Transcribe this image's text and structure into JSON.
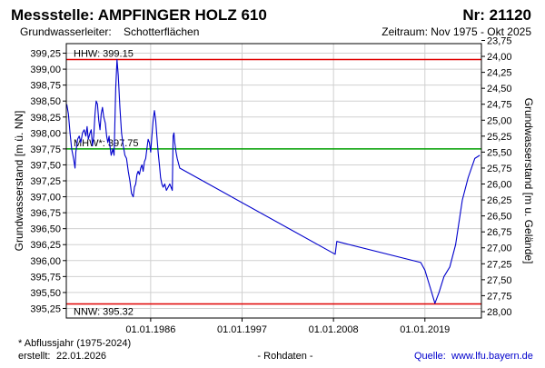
{
  "header": {
    "title": "Messstelle: AMPFINGER HOLZ 610",
    "number": "Nr: 21120",
    "aquifer_label": "Grundwasserleiter:",
    "aquifer_value": "Schotterflächen",
    "period": "Zeitraum: Nov 1975 - Okt 2025"
  },
  "footer": {
    "note": "* Abflussjahr (1975-2024)",
    "created_label": "erstellt:",
    "created_date": "22.01.2026",
    "raw_data": "- Rohdaten -",
    "source_label": "Quelle:",
    "source_url": "www.lfu.bayern.de"
  },
  "chart_data": {
    "type": "line",
    "ylabel_left": "Grundwasserstand [m ü. NN]",
    "ylabel_right": "Grundwasserstand [m u. Gelände]",
    "ylim_left": [
      395.1,
      399.4
    ],
    "ylim_right": [
      28.1,
      23.8
    ],
    "yticks_left": [
      "395,25",
      "395,50",
      "395,75",
      "396,00",
      "396,25",
      "396,50",
      "396,75",
      "397,00",
      "397,25",
      "397,50",
      "397,75",
      "398,00",
      "398,25",
      "398,50",
      "398,75",
      "399,00",
      "399,25"
    ],
    "yticks_right": [
      "23,75",
      "24,00",
      "24,25",
      "24,50",
      "24,75",
      "25,00",
      "25,25",
      "25,50",
      "25,75",
      "26,00",
      "26,25",
      "26,50",
      "26,75",
      "27,00",
      "27,25",
      "27,50",
      "27,75",
      "28,00"
    ],
    "xlim": [
      1975.85,
      2025.8
    ],
    "xticks": [
      {
        "label": "01.01.1986",
        "value": 1986.0
      },
      {
        "label": "01.01.1997",
        "value": 1997.0
      },
      {
        "label": "01.01.2008",
        "value": 2008.0
      },
      {
        "label": "01.01.2019",
        "value": 2019.0
      }
    ],
    "grid": true,
    "reference_lines": [
      {
        "name": "HHW",
        "label": "HHW: 399.15",
        "value": 399.15,
        "color": "#e00000"
      },
      {
        "name": "MHW",
        "label": "MHW*: 397.75",
        "value": 397.75,
        "color": "#00a000"
      },
      {
        "name": "NNW",
        "label": "NNW: 395.32",
        "value": 395.32,
        "color": "#e00000"
      }
    ],
    "series": [
      {
        "color": "#0000cc",
        "points": [
          [
            1975.9,
            398.45
          ],
          [
            1976.1,
            398.3
          ],
          [
            1976.3,
            398.0
          ],
          [
            1976.5,
            397.75
          ],
          [
            1976.75,
            397.58
          ],
          [
            1976.9,
            397.45
          ],
          [
            1977.0,
            397.7
          ],
          [
            1977.2,
            397.9
          ],
          [
            1977.4,
            397.95
          ],
          [
            1977.6,
            397.85
          ],
          [
            1977.8,
            398.0
          ],
          [
            1978.0,
            398.05
          ],
          [
            1978.2,
            397.95
          ],
          [
            1978.35,
            398.1
          ],
          [
            1978.5,
            397.9
          ],
          [
            1978.7,
            398.0
          ],
          [
            1978.85,
            398.05
          ],
          [
            1979.0,
            397.8
          ],
          [
            1979.15,
            397.95
          ],
          [
            1979.3,
            398.3
          ],
          [
            1979.45,
            398.5
          ],
          [
            1979.6,
            398.45
          ],
          [
            1979.75,
            398.2
          ],
          [
            1979.9,
            398.05
          ],
          [
            1980.05,
            398.3
          ],
          [
            1980.2,
            398.4
          ],
          [
            1980.35,
            398.25
          ],
          [
            1980.55,
            398.15
          ],
          [
            1980.7,
            397.95
          ],
          [
            1980.85,
            397.85
          ],
          [
            1981.0,
            397.95
          ],
          [
            1981.1,
            397.8
          ],
          [
            1981.25,
            397.65
          ],
          [
            1981.45,
            397.75
          ],
          [
            1981.6,
            397.65
          ],
          [
            1981.8,
            398.7
          ],
          [
            1981.95,
            399.15
          ],
          [
            1982.1,
            398.9
          ],
          [
            1982.3,
            398.4
          ],
          [
            1982.5,
            398.0
          ],
          [
            1982.7,
            397.8
          ],
          [
            1982.9,
            397.65
          ],
          [
            1983.1,
            397.6
          ],
          [
            1983.3,
            397.4
          ],
          [
            1983.5,
            397.25
          ],
          [
            1983.7,
            397.05
          ],
          [
            1983.9,
            397.0
          ],
          [
            1984.05,
            397.15
          ],
          [
            1984.2,
            397.2
          ],
          [
            1984.35,
            397.35
          ],
          [
            1984.5,
            397.4
          ],
          [
            1984.65,
            397.35
          ],
          [
            1984.8,
            397.45
          ],
          [
            1984.95,
            397.5
          ],
          [
            1985.1,
            397.4
          ],
          [
            1985.25,
            397.55
          ],
          [
            1985.4,
            397.6
          ],
          [
            1985.55,
            397.75
          ],
          [
            1985.7,
            397.9
          ],
          [
            1985.85,
            397.85
          ],
          [
            1986.0,
            397.7
          ],
          [
            1986.15,
            397.95
          ],
          [
            1986.3,
            398.2
          ],
          [
            1986.45,
            398.35
          ],
          [
            1986.6,
            398.2
          ],
          [
            1986.75,
            397.95
          ],
          [
            1986.9,
            397.7
          ],
          [
            1987.05,
            397.5
          ],
          [
            1987.2,
            397.3
          ],
          [
            1987.35,
            397.2
          ],
          [
            1987.5,
            397.15
          ],
          [
            1987.7,
            397.2
          ],
          [
            1987.9,
            397.1
          ],
          [
            1988.1,
            397.15
          ],
          [
            1988.3,
            397.2
          ],
          [
            1988.45,
            397.15
          ],
          [
            1988.6,
            397.1
          ],
          [
            1988.7,
            397.95
          ],
          [
            1988.8,
            398.0
          ],
          [
            1988.9,
            397.85
          ],
          [
            1989.05,
            397.7
          ],
          [
            1989.2,
            397.6
          ],
          [
            1989.5,
            397.45
          ],
          [
            2008.2,
            396.1
          ],
          [
            2008.4,
            396.3
          ],
          [
            2018.5,
            395.97
          ],
          [
            2019.0,
            395.85
          ],
          [
            2019.7,
            395.55
          ],
          [
            2020.2,
            395.33
          ],
          [
            2020.7,
            395.5
          ],
          [
            2021.3,
            395.75
          ],
          [
            2022.0,
            395.9
          ],
          [
            2022.7,
            396.25
          ],
          [
            2023.5,
            396.95
          ],
          [
            2024.2,
            397.3
          ],
          [
            2025.0,
            397.6
          ],
          [
            2025.6,
            397.65
          ]
        ]
      }
    ]
  }
}
